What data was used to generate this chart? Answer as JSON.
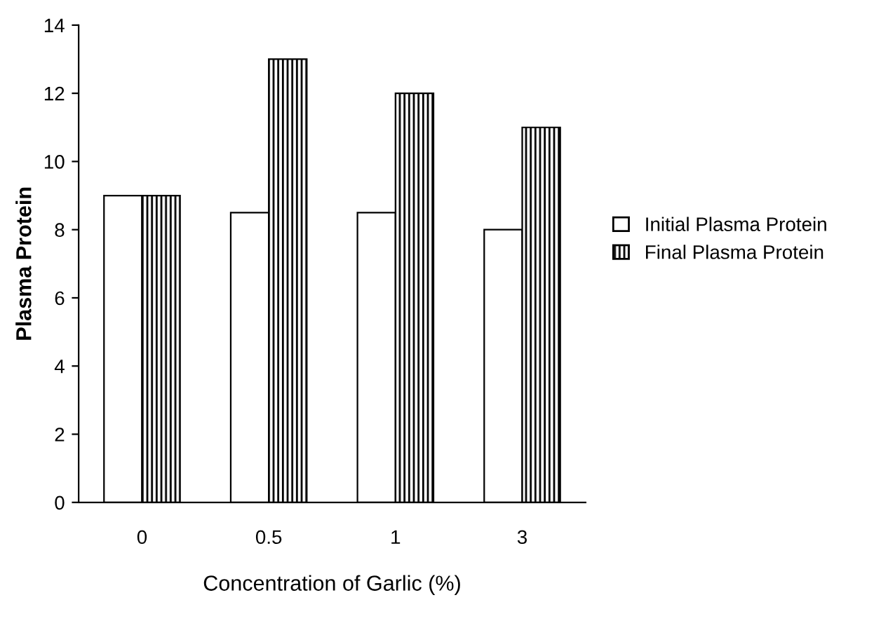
{
  "chart_data": {
    "type": "bar",
    "xlabel": "Concentration of Garlic (%)",
    "ylabel": "Plasma Protein",
    "categories": [
      "0",
      "0.5",
      "1",
      "3"
    ],
    "series": [
      {
        "name": "Initial Plasma Protein",
        "color": "#ffffff",
        "values": [
          9,
          8.5,
          8.5,
          8
        ]
      },
      {
        "name": "Final Plasma Protein",
        "color": "#000000",
        "values": [
          9,
          13,
          12,
          11
        ]
      }
    ],
    "ylim": [
      0,
      14
    ],
    "yticks": [
      0,
      2,
      4,
      6,
      8,
      10,
      12,
      14
    ],
    "grid": false,
    "legend": "right"
  }
}
